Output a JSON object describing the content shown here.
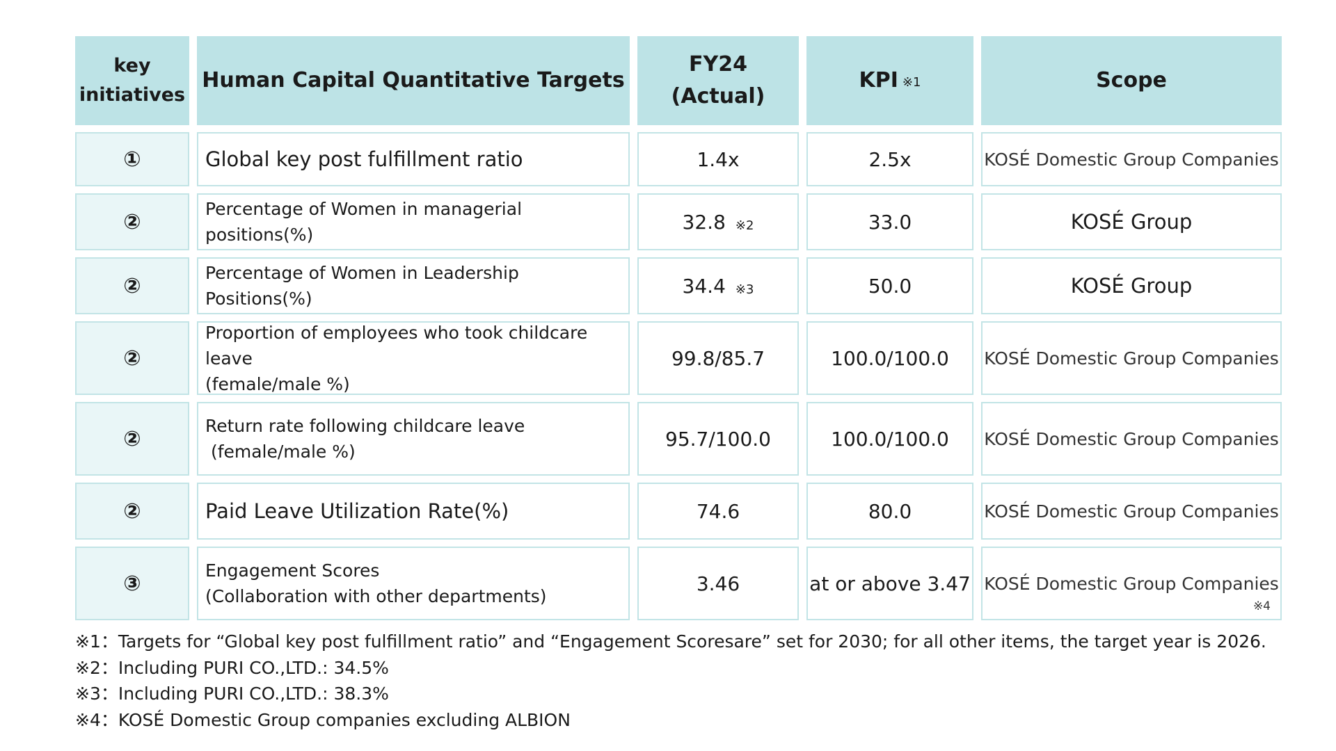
{
  "header": {
    "key_initiatives": "key initiatives",
    "targets": "Human Capital Quantitative Targets",
    "fy24_line1": "FY24",
    "fy24_line2": "(Actual)",
    "kpi": "KPI",
    "kpi_note": "※1",
    "scope": "Scope"
  },
  "rows": [
    {
      "key": "①",
      "target_line1": "Global key post fulfillment ratio",
      "target_line2": "",
      "fy24": "1.4x",
      "fy24_note": "",
      "kpi": "2.5x",
      "scope": "KOSÉ Domestic Group Companies",
      "scope_note": ""
    },
    {
      "key": "②",
      "target_line1": "Percentage of Women in managerial positions(%)",
      "target_line2": "",
      "fy24": "32.8",
      "fy24_note": "※2",
      "kpi": "33.0",
      "scope": "KOSÉ Group",
      "scope_note": ""
    },
    {
      "key": "②",
      "target_line1": "Percentage of Women in Leadership Positions(%)",
      "target_line2": "",
      "fy24": "34.4",
      "fy24_note": "※3",
      "kpi": "50.0",
      "scope": "KOSÉ Group",
      "scope_note": ""
    },
    {
      "key": "②",
      "target_line1": "Proportion of employees who took childcare leave",
      "target_line2": "(female/male %)",
      "fy24": "99.8/85.7",
      "fy24_note": "",
      "kpi": "100.0/100.0",
      "scope": "KOSÉ Domestic Group Companies",
      "scope_note": ""
    },
    {
      "key": "②",
      "target_line1": "Return rate following childcare leave",
      "target_line2": " (female/male %)",
      "fy24": "95.7/100.0",
      "fy24_note": "",
      "kpi": "100.0/100.0",
      "scope": "KOSÉ Domestic Group Companies",
      "scope_note": ""
    },
    {
      "key": "②",
      "target_line1": "Paid Leave Utilization Rate(%)",
      "target_line2": "",
      "fy24": "74.6",
      "fy24_note": "",
      "kpi": "80.0",
      "scope": "KOSÉ Domestic Group Companies",
      "scope_note": ""
    },
    {
      "key": "③",
      "target_line1": "Engagement Scores",
      "target_line2": "(Collaboration with other departments)",
      "fy24": "3.46",
      "fy24_note": "",
      "kpi": "at or above 3.47",
      "scope": "KOSÉ Domestic Group Companies",
      "scope_note": "※4"
    }
  ],
  "notes": [
    "※1：Targets for “Global key post fulfillment ratio” and “Engagement Scoresare” set for 2030; for all other items, the target year is 2026.",
    "※2：Including PURI CO.,LTD.: 34.5%",
    "※3：Including PURI CO.,LTD.: 38.3%",
    "※4：KOSÉ Domestic Group companies excluding ALBION"
  ],
  "colors": {
    "header_bg": "#bde3e6",
    "key_bg": "#e9f6f7",
    "border": "#c2e4e6"
  }
}
